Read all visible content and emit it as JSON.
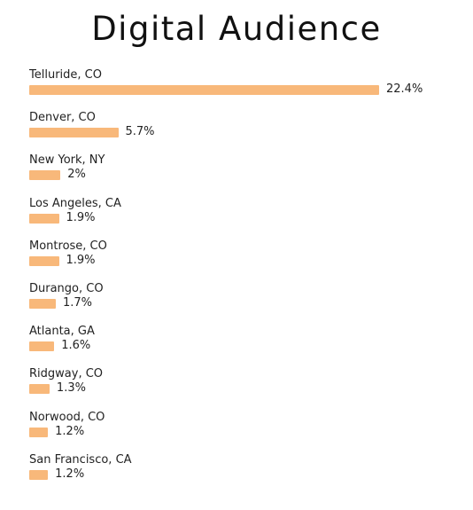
{
  "title": "Digital Audience",
  "chart_data": {
    "type": "bar",
    "orientation": "horizontal",
    "title": "Digital Audience",
    "categories": [
      "Telluride, CO",
      "Denver, CO",
      "New York, NY",
      "Los Angeles, CA",
      "Montrose, CO",
      "Durango, CO",
      "Atlanta, GA",
      "Ridgway, CO",
      "Norwood, CO",
      "San Francisco, CA"
    ],
    "values": [
      22.4,
      5.7,
      2,
      1.9,
      1.9,
      1.7,
      1.6,
      1.3,
      1.2,
      1.2
    ],
    "value_labels": [
      "22.4%",
      "5.7%",
      "2%",
      "1.9%",
      "1.9%",
      "1.7%",
      "1.6%",
      "1.3%",
      "1.2%",
      "1.2%"
    ],
    "unit": "%",
    "bar_color": "#f8b87a",
    "xlim": [
      0,
      22.4
    ],
    "grid": false,
    "legend": "none"
  }
}
